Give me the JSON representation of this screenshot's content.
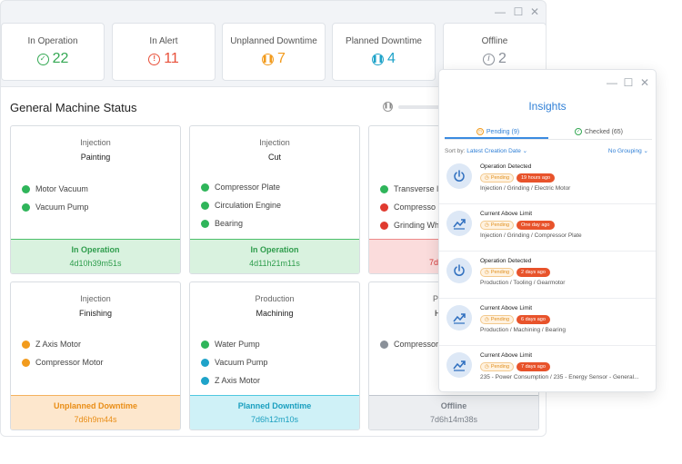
{
  "stats": [
    {
      "label": "In Operation",
      "value": "22",
      "icon": "check-circle-icon",
      "color": "#34a853"
    },
    {
      "label": "In Alert",
      "value": "11",
      "icon": "alert-circle-icon",
      "color": "#e8503a"
    },
    {
      "label": "Unplanned Downtime",
      "value": "7",
      "icon": "pause-circle-icon",
      "color": "#f29b1d"
    },
    {
      "label": "Planned Downtime",
      "value": "4",
      "icon": "pause-circle-icon",
      "color": "#1fa3c9"
    },
    {
      "label": "Offline",
      "value": "2",
      "icon": "slash-circle-icon",
      "color": "#8a9099"
    }
  ],
  "panel": {
    "title": "General Machine Status"
  },
  "machines": [
    {
      "type": "Injection",
      "name": "Painting",
      "components": [
        {
          "label": "Motor Vacuum",
          "color": "#2fb55a"
        },
        {
          "label": "Vacuum Pump",
          "color": "#2fb55a"
        }
      ],
      "status": "In Operation",
      "duration": "4d10h39m51s"
    },
    {
      "type": "Injection",
      "name": "Cut",
      "components": [
        {
          "label": "Compressor Plate",
          "color": "#2fb55a"
        },
        {
          "label": "Circulation Engine",
          "color": "#2fb55a"
        },
        {
          "label": "Bearing",
          "color": "#2fb55a"
        }
      ],
      "status": "In Operation",
      "duration": "4d11h21m11s"
    },
    {
      "type": "",
      "name": "",
      "components": [
        {
          "label": "Transverse l",
          "color": "#2fb55a"
        },
        {
          "label": "Compresso",
          "color": "#e03a2f"
        },
        {
          "label": "Grinding Wh",
          "color": "#e03a2f"
        }
      ],
      "status": "",
      "duration": "7d"
    },
    {
      "type": "Injection",
      "name": "Finishing",
      "components": [
        {
          "label": "Z Axis Motor",
          "color": "#f29b1d"
        },
        {
          "label": "Compressor Motor",
          "color": "#f29b1d"
        }
      ],
      "status": "Unplanned Downtime",
      "duration": "7d6h9m44s"
    },
    {
      "type": "Production",
      "name": "Machining",
      "components": [
        {
          "label": "Water Pump",
          "color": "#2fb55a"
        },
        {
          "label": "Vacuum Pump",
          "color": "#1fa3c9"
        },
        {
          "label": "Z Axis Motor",
          "color": "#1fa3c9"
        }
      ],
      "status": "Planned Downtime",
      "duration": "7d6h12m10s"
    },
    {
      "type": "P",
      "name": "H",
      "components": [
        {
          "label": "Compressor",
          "color": "#8a9099"
        }
      ],
      "status": "Offline",
      "duration": "7d6h14m38s"
    }
  ],
  "insights": {
    "title": "Insights",
    "tabs": [
      {
        "label": "Pending (9)",
        "icon": "clock-icon"
      },
      {
        "label": "Checked (65)",
        "icon": "check-circle-icon"
      }
    ],
    "sort_label": "Sort by:",
    "sort_value": "Latest Creation Date",
    "grouping": "No Grouping",
    "items": [
      {
        "title": "Operation Detected",
        "badge": "Pending",
        "time": "19 hours ago",
        "path": "Injection / Grinding / Electric Motor",
        "icon": "power-icon"
      },
      {
        "title": "Current Above Limit",
        "badge": "Pending",
        "time": "One day ago",
        "path": "Injection / Grinding / Compressor Plate",
        "icon": "trend-up-icon"
      },
      {
        "title": "Operation Detected",
        "badge": "Pending",
        "time": "2 days ago",
        "path": "Production / Tooling / Gearmotor",
        "icon": "power-icon"
      },
      {
        "title": "Current Above Limit",
        "badge": "Pending",
        "time": "6 days ago",
        "path": "Production / Machining / Bearing",
        "icon": "trend-up-icon"
      },
      {
        "title": "Current Above Limit",
        "badge": "Pending",
        "time": "7 days ago",
        "path": "235 - Power Consumption / 235 - Energy Sensor - General...",
        "icon": "trend-up-icon"
      }
    ]
  }
}
